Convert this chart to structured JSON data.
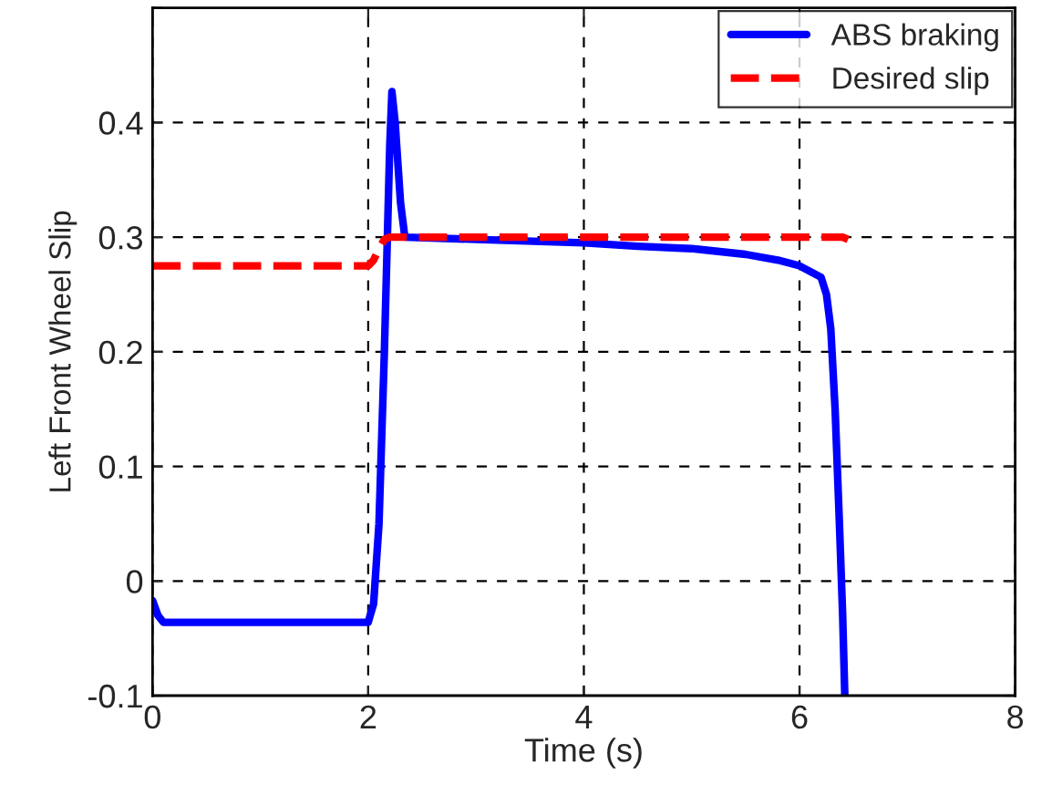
{
  "chart_data": {
    "type": "line",
    "xlabel": "Time (s)",
    "ylabel": "Left Front Wheel Slip",
    "xlim": [
      0,
      8
    ],
    "xticks": [
      0,
      2,
      4,
      6,
      8
    ],
    "ylim": [
      -0.1,
      0.5
    ],
    "yticks": [
      -0.1,
      0,
      0.1,
      0.2,
      0.3,
      0.4,
      {
        "value": 0.5,
        "label": null
      }
    ],
    "grid": true,
    "legend": "top right",
    "series": [
      {
        "name": "ABS braking",
        "color": "#0000ff",
        "line_style": "solid",
        "x": [
          0,
          0.05,
          0.1,
          1.0,
          2.0,
          2.05,
          2.1,
          2.15,
          2.2,
          2.22,
          2.25,
          2.3,
          2.34,
          3.0,
          4.0,
          4.5,
          5.0,
          5.5,
          5.8,
          6.0,
          6.1,
          6.2,
          6.25,
          6.29,
          6.33,
          6.37,
          6.4,
          6.42
        ],
        "values": [
          -0.017,
          -0.03,
          -0.036,
          -0.036,
          -0.036,
          -0.02,
          0.05,
          0.2,
          0.38,
          0.427,
          0.4,
          0.33,
          0.3,
          0.298,
          0.295,
          0.292,
          0.29,
          0.285,
          0.28,
          0.275,
          0.27,
          0.265,
          0.25,
          0.22,
          0.15,
          0.05,
          -0.03,
          -0.1
        ]
      },
      {
        "name": "Desired slip",
        "color": "#ff0000",
        "line_style": "dashed",
        "x": [
          0,
          2.0,
          2.05,
          2.1,
          2.15,
          2.2,
          3.0,
          4.0,
          5.0,
          6.0,
          6.4,
          6.45
        ],
        "values": [
          0.275,
          0.275,
          0.28,
          0.29,
          0.298,
          0.3,
          0.3,
          0.3,
          0.3,
          0.3,
          0.3,
          0.298
        ]
      }
    ]
  }
}
